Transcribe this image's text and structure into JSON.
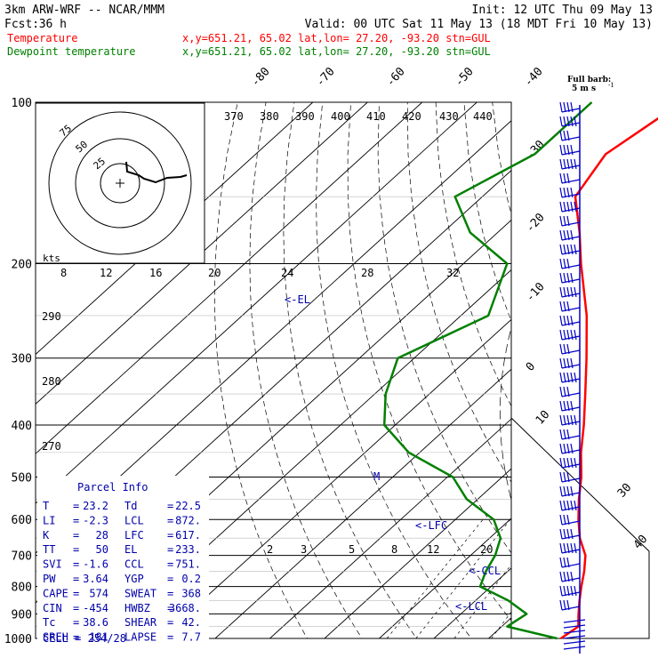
{
  "header": {
    "model": "3km ARW-WRF -- NCAR/MMM",
    "init": "Init: 12 UTC Thu 09 May 13",
    "fcst_label": "Fcst:",
    "fcst_value": "36 h",
    "valid": "Valid: 00 UTC Sat 11 May 13 (18 MDT Fri 10 May 13)"
  },
  "legend": [
    {
      "name": "Temperature",
      "color": "#ff0000",
      "info": "x,y=651.21, 65.02   lat,lon= 27.20, -93.20  stn=GUL"
    },
    {
      "name": "Dewpoint temperature",
      "color": "#008000",
      "info": "x,y=651.21, 65.02   lat,lon= 27.20, -93.20  stn=GUL"
    }
  ],
  "barb_scale": {
    "line1": "Full barb:",
    "line2": "5 m s",
    "exp": "-1"
  },
  "hodograph": {
    "units": "kts",
    "rings": [
      "25",
      "50",
      "75"
    ]
  },
  "parcel_info": {
    "title": "Parcel Info",
    "rows": [
      {
        "l1": "T",
        "v1": "23.2",
        "l2": "Td",
        "v2": "22.5"
      },
      {
        "l1": "LI",
        "v1": "-2.3",
        "l2": "LCL",
        "v2": "872."
      },
      {
        "l1": "K",
        "v1": "28",
        "l2": "LFC",
        "v2": "617."
      },
      {
        "l1": "TT",
        "v1": "50",
        "l2": "EL",
        "v2": "233."
      },
      {
        "l1": "SVI",
        "v1": "-1.6",
        "l2": "CCL",
        "v2": "751."
      },
      {
        "l1": "PW",
        "v1": "3.64",
        "l2": "YGP",
        "v2": "0.2"
      },
      {
        "l1": "CAPE",
        "v1": "574",
        "l2": "SWEAT",
        "v2": "368"
      },
      {
        "l1": "CIN",
        "v1": "-454",
        "l2": "HWBZ",
        "v2": "3668."
      },
      {
        "l1": "Tc",
        "v1": "38.6",
        "l2": "SHEAR",
        "v2": "42."
      },
      {
        "l1": "SREH",
        "v1": "181",
        "l2": "LAPSE",
        "v2": "7.7"
      }
    ],
    "cell": "CELL = 254/28"
  },
  "levels": {
    "LFC": "<-LFC",
    "EL": "<-EL",
    "CCL": "<-CCL",
    "LCL": "<-LCL",
    "M": "M"
  },
  "chart_data": {
    "type": "line",
    "x_axis": "temperature (C), skewed",
    "y_axis": "pressure (hPa), log",
    "ylim": [
      1000,
      100
    ],
    "pressure_labels": [
      "100",
      "200",
      "300",
      "400",
      "500",
      "600",
      "700",
      "800",
      "900",
      "1000"
    ],
    "isotherm_labels": [
      "-80",
      "-70",
      "-60",
      "-50",
      "-40",
      "-30",
      "-20",
      "-10",
      "0",
      "10",
      "30",
      "40"
    ],
    "theta_labels": [
      "370",
      "380",
      "390",
      "400",
      "410",
      "420",
      "430",
      "440"
    ],
    "theta_side_labels": [
      "290",
      "280",
      "270"
    ],
    "mixing_ratio_labels": [
      "2",
      "3",
      "5",
      "8",
      "12",
      "20"
    ],
    "wetbulb_labels": [
      "8",
      "12",
      "16",
      "20",
      "24",
      "28",
      "32"
    ],
    "series": [
      {
        "name": "Temperature",
        "color": "#ff0000",
        "points": [
          [
            1000,
            23.2
          ],
          [
            950,
            24
          ],
          [
            900,
            21.5
          ],
          [
            850,
            19
          ],
          [
            800,
            16.5
          ],
          [
            750,
            14
          ],
          [
            700,
            11
          ],
          [
            650,
            6.5
          ],
          [
            600,
            2.5
          ],
          [
            550,
            -1.5
          ],
          [
            500,
            -5.5
          ],
          [
            450,
            -10.5
          ],
          [
            400,
            -15.5
          ],
          [
            350,
            -21.5
          ],
          [
            300,
            -28.5
          ],
          [
            250,
            -37
          ],
          [
            200,
            -48.5
          ],
          [
            175,
            -55
          ],
          [
            150,
            -63
          ],
          [
            125,
            -66
          ],
          [
            100,
            -62.5
          ]
        ]
      },
      {
        "name": "Dewpoint temperature",
        "color": "#008000",
        "points": [
          [
            1000,
            22.5
          ],
          [
            950,
            11
          ],
          [
            900,
            12
          ],
          [
            850,
            6
          ],
          [
            800,
            -2
          ],
          [
            750,
            -4
          ],
          [
            700,
            -5.5
          ],
          [
            650,
            -8
          ],
          [
            600,
            -13
          ],
          [
            550,
            -22
          ],
          [
            500,
            -29
          ],
          [
            450,
            -42
          ],
          [
            400,
            -52
          ],
          [
            350,
            -58
          ],
          [
            300,
            -63
          ],
          [
            250,
            -55
          ],
          [
            200,
            -62
          ],
          [
            175,
            -75
          ],
          [
            150,
            -85
          ],
          [
            125,
            -79
          ],
          [
            100,
            -79
          ]
        ]
      }
    ]
  },
  "colors": {
    "temp": "#ff0000",
    "dew": "#008000",
    "hodo": "#000000",
    "level": "#0000aa",
    "barb": "#0000c8"
  }
}
